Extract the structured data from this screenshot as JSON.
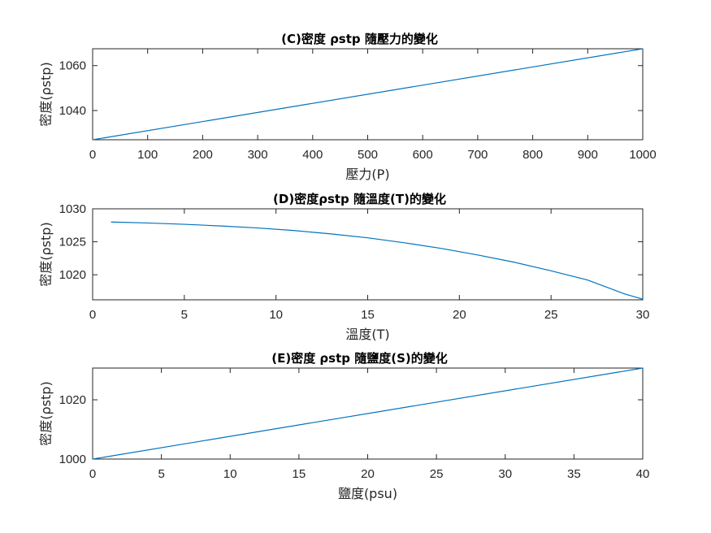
{
  "figure": {
    "background": "#ffffff",
    "axis_color": "#262626",
    "line_color": "#0072bd"
  },
  "chart_data": [
    {
      "type": "line",
      "title": "(C)密度 ρstp 隨壓力的變化",
      "xlabel": "壓力(P)",
      "ylabel": "密度(ρstp)",
      "xlim": [
        0,
        1000
      ],
      "ylim": [
        1027,
        1067.5
      ],
      "xticks": [
        0,
        100,
        200,
        300,
        400,
        500,
        600,
        700,
        800,
        900,
        1000
      ],
      "yticks": [
        1040,
        1060
      ],
      "grid": false,
      "series": [
        {
          "x": [
            0,
            1000
          ],
          "y": [
            1027,
            1067.5
          ]
        }
      ]
    },
    {
      "type": "line",
      "title": "(D)密度ρstp 隨溫度(T)的變化",
      "xlabel": "溫度(T)",
      "ylabel": "密度(ρstp)",
      "xlim": [
        0,
        30
      ],
      "ylim": [
        1016.2,
        1030
      ],
      "xticks": [
        0,
        5,
        10,
        15,
        20,
        25,
        30
      ],
      "yticks": [
        1020,
        1025,
        1030
      ],
      "grid": false,
      "series": [
        {
          "x": [
            1,
            3,
            5,
            7,
            9,
            11,
            13,
            15,
            17,
            19,
            21,
            23,
            25,
            27,
            29,
            30
          ],
          "y": [
            1028,
            1027.85,
            1027.65,
            1027.4,
            1027.1,
            1026.7,
            1026.2,
            1025.6,
            1024.85,
            1024.0,
            1023.0,
            1021.9,
            1020.6,
            1019.2,
            1017.1,
            1016.3
          ]
        }
      ]
    },
    {
      "type": "line",
      "title": "(E)密度 ρstp 隨鹽度(S)的變化",
      "xlabel": "鹽度(psu)",
      "ylabel": "密度(ρstp)",
      "xlim": [
        0,
        40
      ],
      "ylim": [
        1000,
        1030.7
      ],
      "xticks": [
        0,
        5,
        10,
        15,
        20,
        25,
        30,
        35,
        40
      ],
      "yticks": [
        1000,
        1020
      ],
      "grid": false,
      "series": [
        {
          "x": [
            0,
            40
          ],
          "y": [
            1000,
            1030.7
          ]
        }
      ]
    }
  ]
}
